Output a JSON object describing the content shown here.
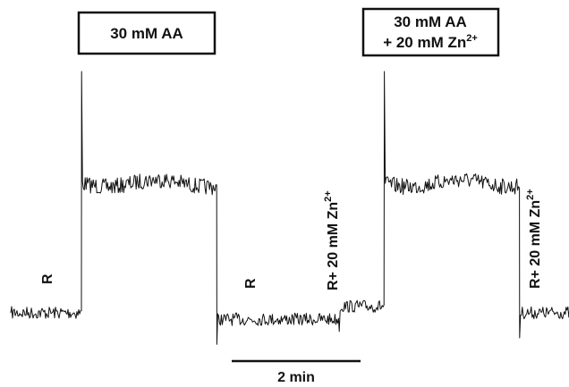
{
  "chart_data": {
    "type": "line",
    "title": "",
    "xlabel": "",
    "ylabel": "",
    "grid": false,
    "legend": "none",
    "trace_color": "#111111",
    "scale_bar": {
      "label": "2 min",
      "minutes": 2
    },
    "segments": [
      {
        "condition": "R",
        "start_min": 0.0,
        "end_min": 1.1,
        "level": 0.0
      },
      {
        "condition": "30 mM AA",
        "start_min": 1.1,
        "end_min": 3.2,
        "level": 1.0
      },
      {
        "condition": "R",
        "start_min": 3.2,
        "end_min": 5.1,
        "level": -0.05
      },
      {
        "condition": "R+ 20 mM Zn2+",
        "start_min": 5.1,
        "end_min": 5.8,
        "level": 0.05
      },
      {
        "condition": "30 mM AA + 20 mM Zn2+",
        "start_min": 5.8,
        "end_min": 7.9,
        "level": 1.0
      },
      {
        "condition": "R+ 20 mM Zn2+",
        "start_min": 7.9,
        "end_min": 9.0,
        "level": 0.0
      }
    ],
    "annotations": {
      "box1": {
        "text": "30 mM AA"
      },
      "box2": {
        "line1": "30 mM AA",
        "line2_main": "+ 20 mM Zn",
        "line2_sup": "2+"
      },
      "r1": "R",
      "r2": "R",
      "rzn_main": "R+ 20 mM Zn",
      "rzn_sup": "2+"
    }
  }
}
